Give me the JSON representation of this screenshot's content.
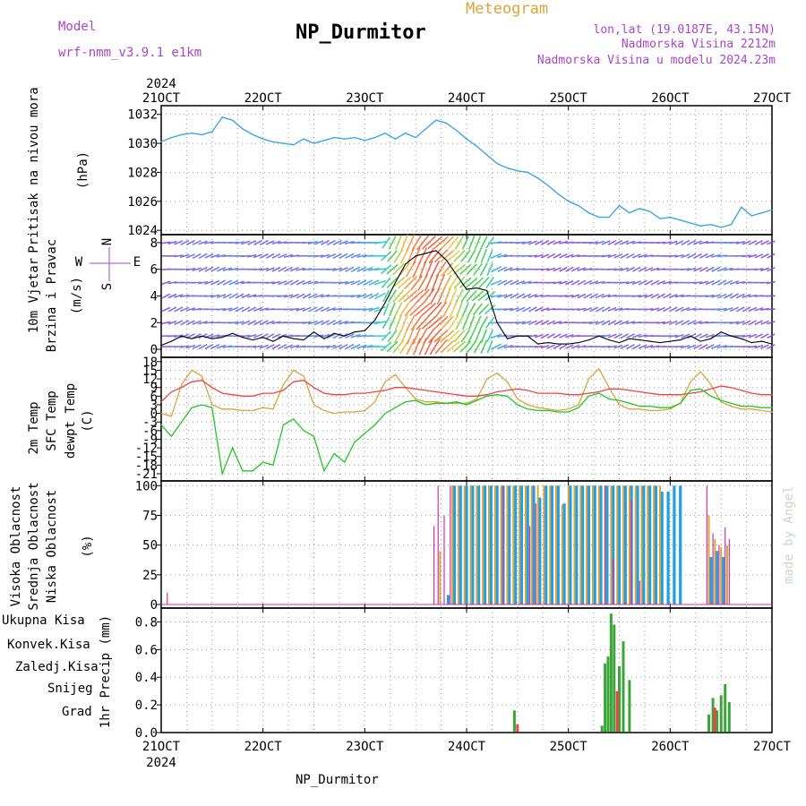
{
  "header": {
    "model_label": "Model",
    "model_name": "wrf-nmm_v3.9.1  e1km",
    "station": "NP_Durmitor",
    "product": "Meteogram",
    "location": "lon,lat (19.0187E, 43.15N)",
    "elevation": "Nadmorska Visina 2212m",
    "model_elevation": "Nadmorska Visina u modelu 2024.23m",
    "footer_station": "NP_Durmitor",
    "credit": "made by Angel"
  },
  "colors": {
    "pressure": "#3ca6de",
    "temp2m": "#ee4444",
    "sfc_temp": "#d9a43c",
    "dewpt": "#22c622",
    "cloud_high": "#1ea0e6",
    "cloud_mid": "#d9a43c",
    "cloud_low": "#cc33aa",
    "rain_total": "#3aa63a",
    "rain_conv": "#ee4444",
    "rain_frozen": "#f08030",
    "snow": "#5555dd",
    "hail": "#22cccc",
    "purple": "#aa44cc"
  },
  "chart_data": [
    {
      "type": "line",
      "panel": "pressure",
      "ylabel": [
        "Pritisak na nivou mora",
        "(hPa)"
      ],
      "x_labels": [
        "21OCT",
        "22OCT",
        "23OCT",
        "24OCT",
        "25OCT",
        "26OCT",
        "27OCT"
      ],
      "x_year": "2024",
      "yticks": [
        1024,
        1026,
        1028,
        1030,
        1032
      ],
      "ylim": [
        1023.7,
        1032.6
      ],
      "grid": true,
      "series": [
        {
          "x": [
            21.0,
            21.1,
            21.2,
            21.3,
            21.4,
            21.5,
            21.6,
            21.7,
            21.8,
            21.9,
            22.0,
            22.1,
            22.2,
            22.3,
            22.4,
            22.5,
            22.6,
            22.7,
            22.8,
            22.9,
            23.0,
            23.1,
            23.2,
            23.3,
            23.4,
            23.5,
            23.6,
            23.7,
            23.8,
            23.9,
            24.0,
            24.1,
            24.2,
            24.3,
            24.4,
            24.5,
            24.6,
            24.7,
            24.8,
            24.9,
            25.0,
            25.1,
            25.2,
            25.3,
            25.4,
            25.5,
            25.6,
            25.7,
            25.8,
            25.9,
            26.0,
            26.1,
            26.2,
            26.3,
            26.4,
            26.5,
            26.6,
            26.7,
            26.8,
            26.9,
            27.0
          ],
          "values": [
            1030.1,
            1030.4,
            1030.6,
            1030.7,
            1030.6,
            1030.8,
            1031.8,
            1031.6,
            1031.0,
            1030.6,
            1030.3,
            1030.1,
            1030.0,
            1029.9,
            1030.3,
            1030.0,
            1030.2,
            1030.4,
            1030.3,
            1030.4,
            1030.2,
            1030.4,
            1030.7,
            1030.3,
            1030.7,
            1030.4,
            1031.0,
            1031.6,
            1031.4,
            1030.9,
            1030.3,
            1029.8,
            1029.2,
            1028.6,
            1028.3,
            1028.1,
            1028.0,
            1027.6,
            1027.1,
            1026.5,
            1026.0,
            1025.7,
            1025.2,
            1024.9,
            1024.9,
            1025.7,
            1025.2,
            1025.5,
            1025.3,
            1024.8,
            1024.9,
            1024.7,
            1024.5,
            1024.3,
            1024.4,
            1024.2,
            1024.4,
            1025.6,
            1025.0,
            1025.2,
            1025.4
          ]
        }
      ]
    },
    {
      "type": "line",
      "panel": "wind",
      "ylabel": [
        "10m Vjetar",
        "Brzina i Pravac",
        "(m/s)"
      ],
      "compass": {
        "n": "N",
        "s": "S",
        "w": "W",
        "e": "E"
      },
      "yticks": [
        0,
        2,
        4,
        6,
        8
      ],
      "ylim": [
        -0.6,
        8.6
      ],
      "grid": true,
      "series": [
        {
          "name": "wind speed",
          "x": [
            21.0,
            21.1,
            21.2,
            21.3,
            21.4,
            21.5,
            21.6,
            21.7,
            21.8,
            21.9,
            22.0,
            22.1,
            22.2,
            22.3,
            22.4,
            22.5,
            22.6,
            22.7,
            22.8,
            22.9,
            23.0,
            23.1,
            23.2,
            23.3,
            23.4,
            23.5,
            23.6,
            23.7,
            23.8,
            23.9,
            24.0,
            24.1,
            24.2,
            24.3,
            24.4,
            24.5,
            24.6,
            24.7,
            24.8,
            24.9,
            25.0,
            25.1,
            25.2,
            25.3,
            25.4,
            25.5,
            25.6,
            25.7,
            25.8,
            25.9,
            26.0,
            26.1,
            26.2,
            26.3,
            26.4,
            26.5,
            26.6,
            26.7,
            26.8,
            26.9,
            27.0
          ],
          "values": [
            0.3,
            0.6,
            1.0,
            0.8,
            1.0,
            0.8,
            0.9,
            1.2,
            0.9,
            0.7,
            0.9,
            0.6,
            1.0,
            0.8,
            0.7,
            1.3,
            0.8,
            1.2,
            1.0,
            1.3,
            1.4,
            2.2,
            3.5,
            5.0,
            6.4,
            7.0,
            7.2,
            7.4,
            6.7,
            5.6,
            4.5,
            4.6,
            4.4,
            2.0,
            0.8,
            1.0,
            1.0,
            0.4,
            0.5,
            0.4,
            0.4,
            0.5,
            0.7,
            1.0,
            0.7,
            0.5,
            0.8,
            0.7,
            0.6,
            0.5,
            0.6,
            0.7,
            1.0,
            0.6,
            0.8,
            1.3,
            1.0,
            0.8,
            0.5,
            0.6,
            0.4
          ]
        }
      ]
    },
    {
      "type": "line",
      "panel": "temperature",
      "ylabel": [
        "2m Temp",
        "SFC Temp",
        "dewpt Temp",
        "(C)"
      ],
      "yticks": [
        -21,
        -18,
        -15,
        -12,
        -9,
        -6,
        -3,
        0,
        3,
        6,
        9,
        12,
        15,
        18
      ],
      "ylim": [
        -23.5,
        19.5
      ],
      "grid": true,
      "series": [
        {
          "name": "2m Temp",
          "x": [
            21.0,
            21.1,
            21.2,
            21.3,
            21.4,
            21.5,
            21.6,
            21.7,
            21.8,
            21.9,
            22.0,
            22.1,
            22.2,
            22.3,
            22.4,
            22.5,
            22.6,
            22.7,
            22.8,
            22.9,
            23.0,
            23.1,
            23.2,
            23.3,
            23.4,
            23.5,
            23.6,
            23.7,
            23.8,
            23.9,
            24.0,
            24.1,
            24.2,
            24.3,
            24.4,
            24.5,
            24.6,
            24.7,
            24.8,
            24.9,
            25.0,
            25.1,
            25.2,
            25.3,
            25.4,
            25.5,
            25.6,
            25.7,
            25.8,
            25.9,
            26.0,
            26.1,
            26.2,
            26.3,
            26.4,
            26.5,
            26.6,
            26.7,
            26.8,
            26.9,
            27.0
          ],
          "values": [
            4.0,
            7.5,
            9.0,
            11.0,
            11.5,
            9.0,
            7.0,
            6.5,
            6.0,
            6.0,
            7.0,
            7.0,
            8.0,
            11.0,
            11.5,
            9.0,
            7.0,
            6.5,
            6.5,
            7.0,
            7.0,
            7.5,
            8.0,
            9.0,
            9.0,
            8.5,
            8.0,
            7.5,
            7.0,
            6.5,
            6.0,
            6.0,
            6.5,
            7.5,
            8.0,
            8.5,
            8.0,
            7.0,
            7.0,
            7.0,
            6.5,
            6.5,
            7.0,
            7.5,
            8.5,
            8.5,
            8.0,
            7.5,
            7.0,
            6.5,
            6.5,
            6.5,
            7.0,
            7.5,
            8.5,
            9.5,
            9.0,
            8.0,
            7.0,
            6.5,
            6.5
          ]
        },
        {
          "name": "SFC Temp",
          "x": [
            21.0,
            21.1,
            21.2,
            21.3,
            21.4,
            21.5,
            21.6,
            21.7,
            21.8,
            21.9,
            22.0,
            22.1,
            22.2,
            22.3,
            22.4,
            22.5,
            22.6,
            22.7,
            22.8,
            22.9,
            23.0,
            23.1,
            23.2,
            23.3,
            23.4,
            23.5,
            23.6,
            23.7,
            23.8,
            23.9,
            24.0,
            24.1,
            24.2,
            24.3,
            24.4,
            24.5,
            24.6,
            24.7,
            24.8,
            24.9,
            25.0,
            25.1,
            25.2,
            25.3,
            25.4,
            25.5,
            25.6,
            25.7,
            25.8,
            25.9,
            26.0,
            26.1,
            26.2,
            26.3,
            26.4,
            26.5,
            26.6,
            26.7,
            26.8,
            26.9,
            27.0
          ],
          "values": [
            0.0,
            -1.0,
            10.0,
            15.0,
            13.0,
            3.0,
            1.5,
            1.5,
            1.0,
            1.0,
            2.0,
            1.5,
            10.0,
            15.0,
            13.0,
            3.0,
            1.0,
            0.0,
            0.5,
            0.5,
            1.0,
            4.0,
            11.0,
            13.5,
            9.0,
            5.0,
            4.0,
            4.0,
            3.5,
            3.5,
            3.5,
            5.0,
            12.0,
            14.0,
            11.0,
            5.0,
            3.0,
            2.0,
            1.5,
            1.0,
            1.5,
            3.0,
            12.0,
            15.5,
            9.0,
            3.0,
            1.5,
            1.5,
            1.0,
            1.0,
            1.5,
            3.5,
            11.0,
            14.5,
            10.0,
            4.0,
            2.5,
            1.5,
            1.5,
            1.0,
            0.5
          ]
        },
        {
          "name": "dewpt Temp",
          "x": [
            21.0,
            21.1,
            21.2,
            21.3,
            21.4,
            21.5,
            21.6,
            21.7,
            21.8,
            21.9,
            22.0,
            22.1,
            22.2,
            22.3,
            22.4,
            22.5,
            22.6,
            22.7,
            22.8,
            22.9,
            23.0,
            23.1,
            23.2,
            23.3,
            23.4,
            23.5,
            23.6,
            23.7,
            23.8,
            23.9,
            24.0,
            24.1,
            24.2,
            24.3,
            24.4,
            24.5,
            24.6,
            24.7,
            24.8,
            24.9,
            25.0,
            25.1,
            25.2,
            25.3,
            25.4,
            25.5,
            25.6,
            25.7,
            25.8,
            25.9,
            26.0,
            26.1,
            26.2,
            26.3,
            26.4,
            26.5,
            26.6,
            26.7,
            26.8,
            26.9,
            27.0
          ],
          "values": [
            -4.0,
            -8.0,
            -3.0,
            2.0,
            3.0,
            2.0,
            -21.0,
            -12.0,
            -20.0,
            -20.0,
            -17.0,
            -18.0,
            -4.0,
            -2.0,
            -6.0,
            -8.0,
            -20.0,
            -14.0,
            -17.0,
            -10.0,
            -7.0,
            -4.0,
            0.0,
            2.0,
            4.0,
            4.5,
            3.0,
            3.5,
            3.5,
            4.0,
            3.0,
            4.5,
            6.0,
            6.5,
            6.0,
            3.0,
            1.5,
            1.0,
            1.0,
            0.5,
            0.5,
            2.0,
            6.0,
            7.0,
            5.0,
            4.5,
            3.5,
            2.5,
            2.5,
            2.0,
            2.0,
            3.5,
            8.0,
            8.5,
            6.0,
            4.5,
            3.5,
            2.5,
            2.5,
            2.0,
            2.0
          ]
        }
      ]
    },
    {
      "type": "bar",
      "panel": "clouds",
      "ylabel": [
        "Visoka Oblacnost",
        "Srednja Oblacnost",
        "Niska Oblacnost",
        "(%)"
      ],
      "yticks": [
        0,
        25,
        50,
        75,
        100
      ],
      "ylim": [
        -3,
        104
      ],
      "grid": true,
      "series": [
        {
          "name": "Visoka Oblacnost",
          "x": [
            23.82,
            23.88,
            23.94,
            24.0,
            24.06,
            24.12,
            24.18,
            24.24,
            24.3,
            24.36,
            24.42,
            24.48,
            24.54,
            24.6,
            24.66,
            24.72,
            24.78,
            24.84,
            24.9,
            24.96,
            25.02,
            25.08,
            25.14,
            25.2,
            25.26,
            25.32,
            25.38,
            25.44,
            25.5,
            25.56,
            25.62,
            25.68,
            25.74,
            25.8,
            25.86,
            25.92,
            25.98,
            26.04,
            26.1,
            26.4,
            26.46,
            26.52
          ],
          "values": [
            8,
            100,
            100,
            100,
            100,
            100,
            100,
            100,
            100,
            100,
            100,
            100,
            100,
            100,
            100,
            90,
            100,
            100,
            100,
            85,
            100,
            100,
            100,
            100,
            100,
            100,
            100,
            100,
            100,
            100,
            100,
            100,
            100,
            100,
            100,
            95,
            95,
            100,
            100,
            40,
            45,
            40
          ]
        },
        {
          "name": "Srednja Oblacnost",
          "x": [
            23.74,
            23.86,
            23.92,
            23.98,
            24.04,
            24.1,
            24.16,
            24.22,
            24.28,
            24.34,
            24.4,
            24.46,
            24.52,
            24.58,
            24.64,
            24.7,
            24.76,
            24.82,
            24.88,
            24.94,
            25.0,
            25.06,
            25.12,
            25.18,
            25.24,
            25.3,
            25.36,
            25.42,
            25.48,
            25.54,
            25.6,
            25.66,
            25.72,
            25.78,
            25.84,
            25.9,
            26.38,
            26.44,
            26.5,
            26.56
          ],
          "values": [
            45,
            100,
            100,
            100,
            100,
            100,
            100,
            100,
            100,
            100,
            100,
            100,
            100,
            100,
            100,
            100,
            100,
            100,
            100,
            84,
            100,
            100,
            100,
            100,
            100,
            100,
            100,
            100,
            100,
            100,
            100,
            100,
            100,
            100,
            100,
            100,
            75,
            55,
            48,
            50
          ]
        },
        {
          "name": "Niska Oblacnost",
          "x": [
            21.06,
            23.68,
            23.72,
            23.78,
            23.84,
            24.36,
            24.62,
            24.68,
            25.36,
            25.44,
            25.62,
            25.7,
            26.36,
            26.42,
            26.48,
            26.54,
            26.58
          ],
          "values": [
            10,
            66,
            100,
            75,
            100,
            100,
            66,
            85,
            100,
            38,
            88,
            20,
            100,
            60,
            50,
            65,
            55
          ]
        }
      ]
    },
    {
      "type": "bar",
      "panel": "precipitation",
      "ylabel": [
        "1hr Precip (mm)"
      ],
      "legend": [
        "Ukupna Kisa",
        "Konvek.Kisa",
        "Zaledj.Kisa",
        "Snijeg",
        "Grad"
      ],
      "yticks": [
        0,
        0.2,
        0.4,
        0.6,
        0.8
      ],
      "ylim": [
        0,
        0.9
      ],
      "grid": true,
      "series": [
        {
          "name": "Ukupna Kisa",
          "x": [
            24.47,
            25.33,
            25.36,
            25.39,
            25.42,
            25.45,
            25.5,
            25.54,
            25.6,
            26.38,
            26.42,
            26.46,
            26.5,
            26.54,
            26.58
          ],
          "values": [
            0.16,
            0.05,
            0.5,
            0.55,
            0.86,
            0.78,
            0.48,
            0.66,
            0.38,
            0.13,
            0.25,
            0.16,
            0.27,
            0.35,
            0.22
          ]
        },
        {
          "name": "Konvek.Kisa",
          "x": [
            24.5,
            25.48,
            26.44
          ],
          "values": [
            0.06,
            0.3,
            0.18
          ]
        }
      ]
    }
  ]
}
